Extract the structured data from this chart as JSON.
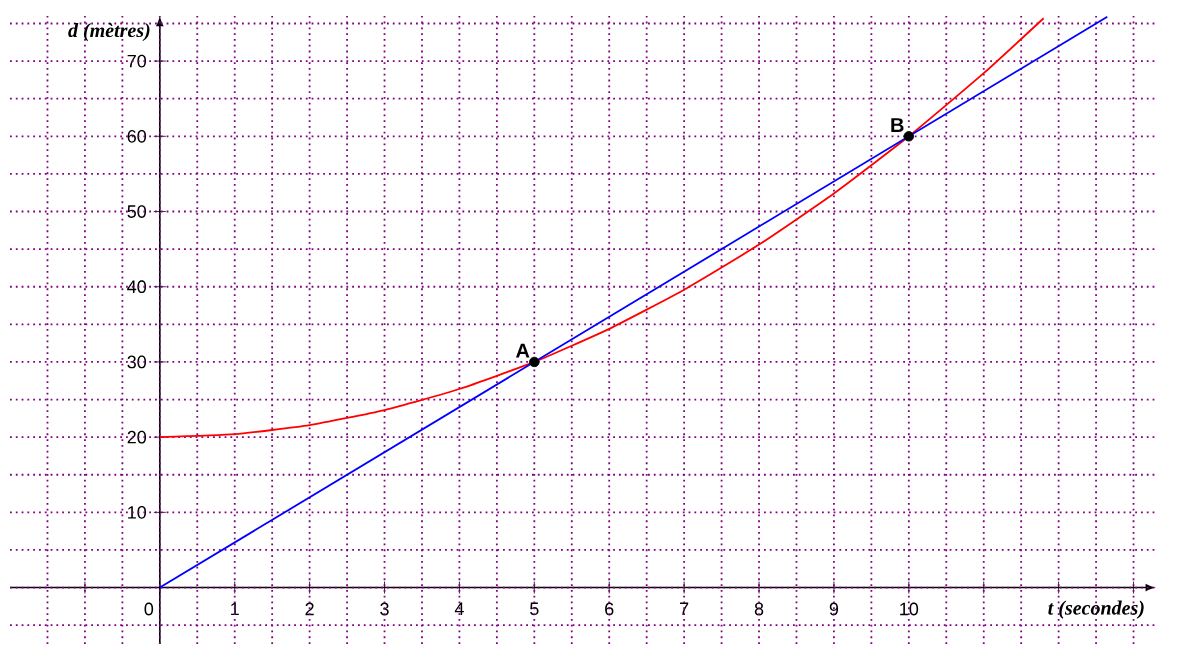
{
  "chart_data": {
    "type": "line",
    "xlabel": "t (secondes)",
    "ylabel": "d (mètres)",
    "xlim": [
      -2,
      13.3
    ],
    "ylim": [
      -7.5,
      76
    ],
    "xticks": [
      {
        "value": -1,
        "label": null
      },
      {
        "value": 0,
        "label": "0"
      },
      1,
      2,
      3,
      4,
      5,
      6,
      7,
      8,
      9,
      10,
      {
        "value": 11,
        "label": null
      },
      {
        "value": 12,
        "label": null
      },
      {
        "value": 13,
        "label": null
      }
    ],
    "yticks": [
      10,
      20,
      30,
      40,
      50,
      60,
      70
    ],
    "grid": true,
    "line_style": "solid",
    "series": [
      {
        "color": "#ff0000",
        "x": [
          0,
          1,
          2,
          3,
          4,
          5,
          6,
          7,
          8,
          9,
          10,
          11,
          11.8
        ],
        "values": [
          20,
          20.4,
          21.6,
          23.6,
          26.4,
          30,
          34.4,
          39.6,
          45.6,
          52.4,
          60,
          68.4,
          75.7
        ]
      },
      {
        "color": "#0000ff",
        "x": [
          0,
          12.65
        ],
        "values": [
          0,
          75.9
        ]
      },
      {
        "type": "scatter",
        "marker": "circle",
        "color": "#000000",
        "x": [
          5,
          10
        ],
        "values": [
          30,
          60
        ]
      }
    ],
    "annotations": [
      {
        "text": "A",
        "x": 5,
        "y": 30
      },
      {
        "text": "B",
        "x": 10,
        "y": 60
      }
    ]
  }
}
